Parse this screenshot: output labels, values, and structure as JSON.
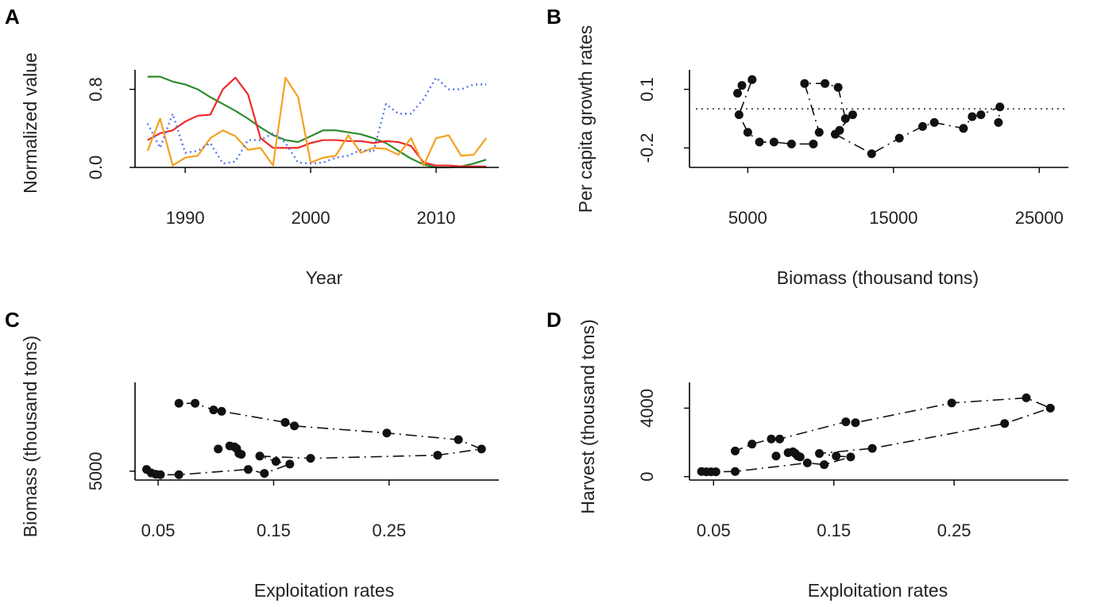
{
  "colors": {
    "green": "#2e8b2e",
    "red": "#ee2a2a",
    "orange": "#f5a021",
    "blue": "#5577ee",
    "black": "#111111"
  },
  "chart_data": [
    {
      "panel": "A",
      "type": "line",
      "xlabel": "Year",
      "ylabel": "Normalized value",
      "xlim": [
        1986,
        2015
      ],
      "ylim": [
        0,
        1
      ],
      "xticks": [
        1990,
        2000,
        2010
      ],
      "xtick_labels": [
        "1990",
        "2000",
        "2010"
      ],
      "yticks": [
        0.0,
        0.8
      ],
      "ytick_labels": [
        "0.0",
        "0.8"
      ],
      "x": [
        1987,
        1988,
        1989,
        1990,
        1991,
        1992,
        1993,
        1994,
        1995,
        1996,
        1997,
        1998,
        1999,
        2000,
        2001,
        2002,
        2003,
        2004,
        2005,
        2006,
        2007,
        2008,
        2009,
        2010,
        2011,
        2012,
        2013,
        2014
      ],
      "series": [
        {
          "name": "green",
          "color": "#2e8b2e",
          "style": "solid",
          "values": [
            0.93,
            0.93,
            0.88,
            0.85,
            0.8,
            0.72,
            0.65,
            0.58,
            0.5,
            0.41,
            0.33,
            0.28,
            0.26,
            0.32,
            0.38,
            0.38,
            0.36,
            0.34,
            0.3,
            0.25,
            0.17,
            0.09,
            0.03,
            0.0,
            0.0,
            0.01,
            0.04,
            0.08
          ]
        },
        {
          "name": "red",
          "color": "#ee2a2a",
          "style": "solid",
          "values": [
            0.28,
            0.35,
            0.38,
            0.47,
            0.53,
            0.54,
            0.8,
            0.92,
            0.75,
            0.3,
            0.2,
            0.2,
            0.2,
            0.25,
            0.28,
            0.28,
            0.27,
            0.27,
            0.25,
            0.27,
            0.26,
            0.22,
            0.05,
            0.02,
            0.02,
            0.01,
            0.01,
            0.01
          ]
        },
        {
          "name": "orange",
          "color": "#f5a021",
          "style": "solid",
          "values": [
            0.17,
            0.5,
            0.02,
            0.1,
            0.12,
            0.3,
            0.38,
            0.32,
            0.18,
            0.2,
            0.02,
            0.92,
            0.72,
            0.05,
            0.1,
            0.12,
            0.33,
            0.15,
            0.2,
            0.19,
            0.13,
            0.3,
            0.02,
            0.3,
            0.33,
            0.12,
            0.13,
            0.3
          ]
        },
        {
          "name": "blue",
          "color": "#5577ee",
          "style": "dotted",
          "values": [
            0.45,
            0.2,
            0.55,
            0.15,
            0.17,
            0.25,
            0.04,
            0.06,
            0.28,
            0.28,
            0.35,
            0.25,
            0.05,
            0.04,
            0.05,
            0.1,
            0.12,
            0.18,
            0.16,
            0.65,
            0.55,
            0.55,
            0.7,
            0.92,
            0.8,
            0.8,
            0.85,
            0.85
          ]
        }
      ]
    },
    {
      "panel": "B",
      "type": "scatter",
      "xlabel": "Biomass (thousand tons)",
      "ylabel": "Per capita growth rates",
      "xlim": [
        1000,
        27000
      ],
      "ylim": [
        -0.3,
        0.2
      ],
      "xticks": [
        5000,
        15000,
        25000
      ],
      "xtick_labels": [
        "5000",
        "15000",
        "25000"
      ],
      "yticks": [
        -0.2,
        0.1
      ],
      "ytick_labels": [
        "-0.2",
        "0.1"
      ],
      "reference_line_y": 0.0,
      "points": [
        [
          4300,
          0.08
        ],
        [
          4600,
          0.12
        ],
        [
          5300,
          0.15
        ],
        [
          4400,
          -0.03
        ],
        [
          5000,
          -0.12
        ],
        [
          5800,
          -0.17
        ],
        [
          6800,
          -0.17
        ],
        [
          8000,
          -0.18
        ],
        [
          9500,
          -0.18
        ],
        [
          9900,
          -0.12
        ],
        [
          11000,
          -0.13
        ],
        [
          11300,
          -0.11
        ],
        [
          11700,
          -0.05
        ],
        [
          12200,
          -0.03
        ],
        [
          13500,
          -0.23
        ],
        [
          15400,
          -0.15
        ],
        [
          17000,
          -0.09
        ],
        [
          17800,
          -0.07
        ],
        [
          19800,
          -0.1
        ],
        [
          20400,
          -0.04
        ],
        [
          21000,
          -0.03
        ],
        [
          22300,
          0.01
        ],
        [
          22200,
          -0.07
        ],
        [
          10300,
          0.13
        ],
        [
          8900,
          0.13
        ],
        [
          11200,
          0.11
        ]
      ],
      "path": [
        [
          4300,
          0.08
        ],
        [
          4600,
          0.12
        ],
        [
          5300,
          0.15
        ],
        [
          4400,
          -0.03
        ],
        [
          5000,
          -0.12
        ],
        [
          5800,
          -0.17
        ],
        [
          6800,
          -0.17
        ],
        [
          8000,
          -0.18
        ],
        [
          9500,
          -0.18
        ],
        [
          9900,
          -0.12
        ],
        [
          8900,
          0.13
        ],
        [
          10300,
          0.13
        ],
        [
          11200,
          0.11
        ],
        [
          11700,
          -0.05
        ],
        [
          12200,
          -0.03
        ],
        [
          11000,
          -0.13
        ],
        [
          13500,
          -0.23
        ],
        [
          15400,
          -0.15
        ],
        [
          17000,
          -0.09
        ],
        [
          17800,
          -0.07
        ],
        [
          19800,
          -0.1
        ],
        [
          20400,
          -0.04
        ],
        [
          21000,
          -0.03
        ],
        [
          22300,
          0.01
        ],
        [
          22200,
          -0.07
        ]
      ]
    },
    {
      "panel": "C",
      "type": "scatter",
      "xlabel": "Exploitation rates",
      "ylabel": "Biomass (thousand tons)",
      "xlim": [
        0.03,
        0.345
      ],
      "ylim": [
        3000,
        25000
      ],
      "xticks": [
        0.05,
        0.15,
        0.25
      ],
      "xtick_labels": [
        "0.05",
        "0.15",
        "0.25"
      ],
      "yticks": [
        5000
      ],
      "ytick_labels": [
        "5000"
      ],
      "points": [
        [
          0.04,
          5400
        ],
        [
          0.044,
          4600
        ],
        [
          0.048,
          4300
        ],
        [
          0.052,
          4200
        ],
        [
          0.068,
          4200
        ],
        [
          0.068,
          20300
        ],
        [
          0.082,
          20300
        ],
        [
          0.098,
          18800
        ],
        [
          0.105,
          18500
        ],
        [
          0.102,
          10000
        ],
        [
          0.112,
          10700
        ],
        [
          0.116,
          10500
        ],
        [
          0.118,
          10100
        ],
        [
          0.12,
          9000
        ],
        [
          0.122,
          8800
        ],
        [
          0.128,
          5400
        ],
        [
          0.138,
          8400
        ],
        [
          0.142,
          4500
        ],
        [
          0.152,
          7200
        ],
        [
          0.164,
          6600
        ],
        [
          0.16,
          16000
        ],
        [
          0.168,
          15200
        ],
        [
          0.182,
          7900
        ],
        [
          0.248,
          13600
        ],
        [
          0.292,
          8600
        ],
        [
          0.31,
          12100
        ],
        [
          0.33,
          10000
        ]
      ],
      "path": [
        [
          0.04,
          5400
        ],
        [
          0.044,
          4600
        ],
        [
          0.048,
          4300
        ],
        [
          0.052,
          4200
        ],
        [
          0.068,
          4200
        ],
        [
          0.128,
          5400
        ],
        [
          0.142,
          4500
        ],
        [
          0.164,
          6600
        ],
        [
          0.152,
          7200
        ],
        [
          0.138,
          8400
        ],
        [
          0.182,
          7900
        ],
        [
          0.292,
          8600
        ],
        [
          0.33,
          10000
        ],
        [
          0.31,
          12100
        ],
        [
          0.248,
          13600
        ],
        [
          0.168,
          15200
        ],
        [
          0.16,
          16000
        ],
        [
          0.105,
          18500
        ],
        [
          0.098,
          18800
        ],
        [
          0.082,
          20300
        ],
        [
          0.068,
          20300
        ]
      ]
    },
    {
      "panel": "D",
      "type": "scatter",
      "xlabel": "Exploitation rates",
      "ylabel": "Harvest (thousand tons)",
      "xlim": [
        0.03,
        0.345
      ],
      "ylim": [
        -200,
        5500
      ],
      "xticks": [
        0.05,
        0.15,
        0.25
      ],
      "xtick_labels": [
        "0.05",
        "0.15",
        "0.25"
      ],
      "yticks": [
        0,
        4000
      ],
      "ytick_labels": [
        "0",
        "4000"
      ],
      "points": [
        [
          0.04,
          300
        ],
        [
          0.044,
          280
        ],
        [
          0.048,
          280
        ],
        [
          0.052,
          280
        ],
        [
          0.068,
          300
        ],
        [
          0.068,
          1500
        ],
        [
          0.082,
          1900
        ],
        [
          0.098,
          2200
        ],
        [
          0.105,
          2200
        ],
        [
          0.102,
          1200
        ],
        [
          0.112,
          1400
        ],
        [
          0.116,
          1450
        ],
        [
          0.118,
          1350
        ],
        [
          0.12,
          1200
        ],
        [
          0.122,
          1150
        ],
        [
          0.128,
          800
        ],
        [
          0.138,
          1350
        ],
        [
          0.142,
          700
        ],
        [
          0.152,
          1200
        ],
        [
          0.164,
          1150
        ],
        [
          0.16,
          3200
        ],
        [
          0.168,
          3150
        ],
        [
          0.182,
          1650
        ],
        [
          0.248,
          4300
        ],
        [
          0.292,
          3100
        ],
        [
          0.31,
          4600
        ],
        [
          0.33,
          4000
        ]
      ],
      "path": [
        [
          0.04,
          300
        ],
        [
          0.044,
          280
        ],
        [
          0.048,
          280
        ],
        [
          0.052,
          280
        ],
        [
          0.068,
          300
        ],
        [
          0.128,
          800
        ],
        [
          0.142,
          700
        ],
        [
          0.164,
          1150
        ],
        [
          0.152,
          1200
        ],
        [
          0.138,
          1350
        ],
        [
          0.182,
          1650
        ],
        [
          0.292,
          3100
        ],
        [
          0.33,
          4000
        ],
        [
          0.31,
          4600
        ],
        [
          0.248,
          4300
        ],
        [
          0.168,
          3150
        ],
        [
          0.16,
          3200
        ],
        [
          0.105,
          2200
        ],
        [
          0.098,
          2200
        ],
        [
          0.082,
          1900
        ],
        [
          0.068,
          1500
        ]
      ]
    }
  ]
}
